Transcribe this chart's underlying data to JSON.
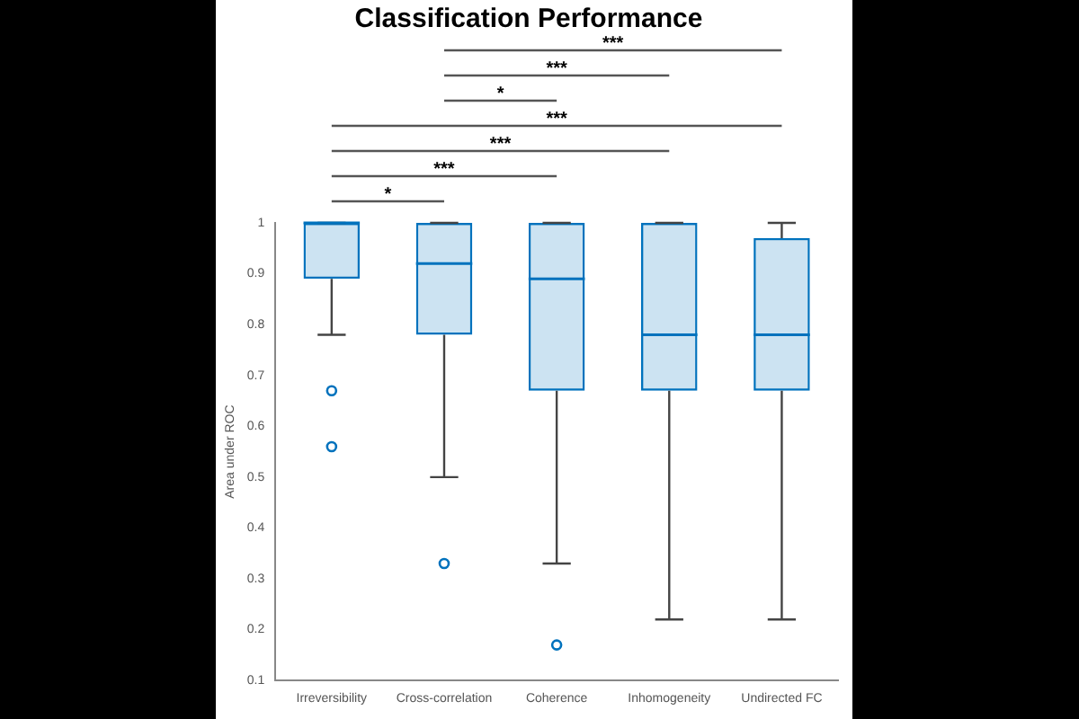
{
  "chart_data": {
    "type": "box",
    "title": "Classification Performance",
    "ylabel": "Area under ROC",
    "categories": [
      "Irreversibility",
      "Cross-correlation",
      "Coherence",
      "Inhomogeneity",
      "Undirected FC"
    ],
    "boxes": [
      {
        "low": 0.78,
        "q1": 0.89,
        "median": 1,
        "q3": 1,
        "high": 1,
        "outliers": [
          0.67,
          0.56
        ]
      },
      {
        "low": 0.5,
        "q1": 0.78,
        "median": 0.92,
        "q3": 1,
        "high": 1,
        "outliers": [
          0.33
        ]
      },
      {
        "low": 0.33,
        "q1": 0.67,
        "median": 0.89,
        "q3": 1,
        "high": 1,
        "outliers": [
          0.17
        ]
      },
      {
        "low": 0.22,
        "q1": 0.67,
        "median": 0.78,
        "q3": 1,
        "high": 1
      },
      {
        "low": 0.22,
        "q1": 0.67,
        "median": 0.78,
        "q3": 0.97,
        "high": 1
      }
    ],
    "color": "#0072bd",
    "ylim": [
      0.1,
      1
    ],
    "yticks": [
      0.1,
      0.2,
      0.3,
      0.4,
      0.5,
      0.6,
      0.7,
      0.8,
      0.9,
      1
    ],
    "grid": false,
    "legend": false,
    "annotations": [
      "***",
      "***",
      "*",
      "***",
      "***",
      "***",
      "*"
    ]
  }
}
